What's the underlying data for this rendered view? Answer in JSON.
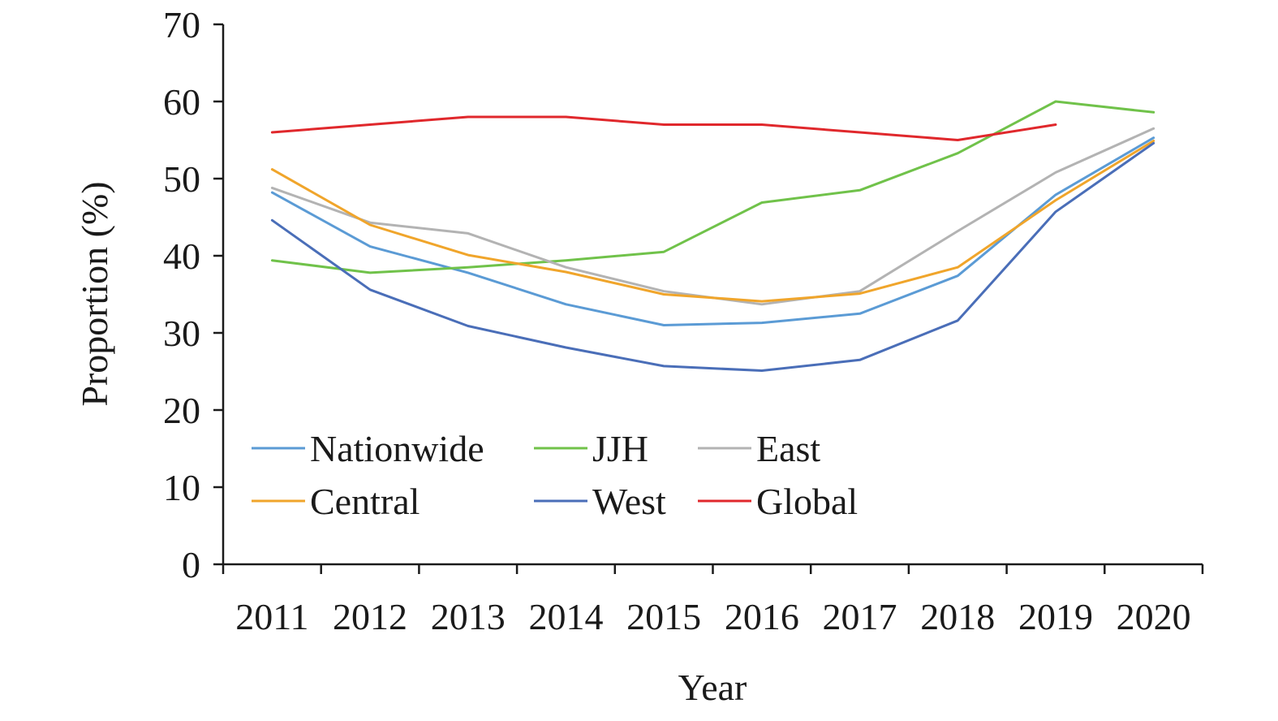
{
  "chart_data": {
    "type": "line",
    "xlabel": "Year",
    "ylabel": "Proportion (%)",
    "ylim": [
      0,
      70
    ],
    "yticks": [
      0,
      10,
      20,
      30,
      40,
      50,
      60,
      70
    ],
    "categories": [
      "2011",
      "2012",
      "2013",
      "2014",
      "2015",
      "2016",
      "2017",
      "2018",
      "2019",
      "2020"
    ],
    "grid": false,
    "legend_position": "bottom-left inside",
    "series": [
      {
        "name": "Nationwide",
        "color": "#5b9bd5",
        "values": [
          48.2,
          41.2,
          37.8,
          33.7,
          31.0,
          31.3,
          32.5,
          37.4,
          47.9,
          55.3
        ]
      },
      {
        "name": "JJH",
        "color": "#70c24a",
        "values": [
          39.4,
          37.8,
          38.5,
          39.4,
          40.5,
          46.9,
          48.5,
          53.3,
          60.0,
          58.6
        ]
      },
      {
        "name": "East",
        "color": "#b3b3b3",
        "values": [
          48.8,
          44.3,
          42.9,
          38.5,
          35.4,
          33.7,
          35.4,
          43.2,
          50.8,
          56.5
        ]
      },
      {
        "name": "Central",
        "color": "#f0a52b",
        "values": [
          51.2,
          44.0,
          40.1,
          37.9,
          35.0,
          34.1,
          35.1,
          38.5,
          47.2,
          54.9
        ]
      },
      {
        "name": "West",
        "color": "#4a6eb8",
        "values": [
          44.6,
          35.6,
          30.9,
          28.1,
          25.7,
          25.1,
          26.5,
          31.6,
          45.7,
          54.6
        ]
      },
      {
        "name": "Global",
        "color": "#e0282c",
        "values": [
          56.0,
          57.0,
          58.0,
          58.0,
          57.0,
          57.0,
          56.0,
          55.0,
          57.0,
          null
        ]
      }
    ]
  }
}
